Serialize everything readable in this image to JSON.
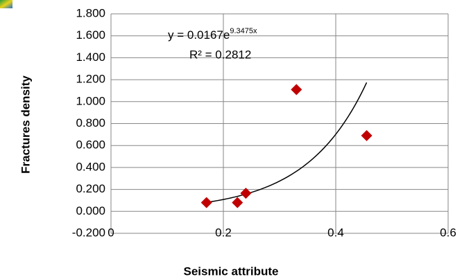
{
  "chart_data": {
    "type": "scatter",
    "x_label": "Seismic attribute",
    "y_label": "Fractures density",
    "x": [
      0.17,
      0.225,
      0.24,
      0.33,
      0.455
    ],
    "series": [
      {
        "color": "#c00000",
        "values": [
          0.08,
          0.08,
          0.165,
          1.11,
          0.69
        ]
      }
    ],
    "xlim": [
      0,
      0.6
    ],
    "xticks": [
      0,
      0.2,
      0.4,
      0.6
    ],
    "ylim": [
      -0.2,
      1.8
    ],
    "yticks": [
      {
        "value": -0.2,
        "label": "-0.200"
      },
      {
        "value": 0,
        "label": "0.000"
      },
      {
        "value": 0.2,
        "label": "0.200"
      },
      {
        "value": 0.4,
        "label": "0.400"
      },
      {
        "value": 0.6,
        "label": "0.600"
      },
      {
        "value": 0.8,
        "label": "0.800"
      },
      {
        "value": 1,
        "label": "1.000"
      },
      {
        "value": 1.2,
        "label": "1.200"
      },
      {
        "value": 1.4,
        "label": "1.400"
      },
      {
        "value": 1.6,
        "label": "1.600"
      },
      {
        "value": 1.8,
        "label": "1.800"
      }
    ],
    "grid": true,
    "trendline": {
      "equation": "y = 0.0167e",
      "exponent": "9.3475x",
      "r2_label": "R² = 0.2812",
      "a": 0.0167,
      "b": 9.3475,
      "color": "#000000"
    }
  }
}
